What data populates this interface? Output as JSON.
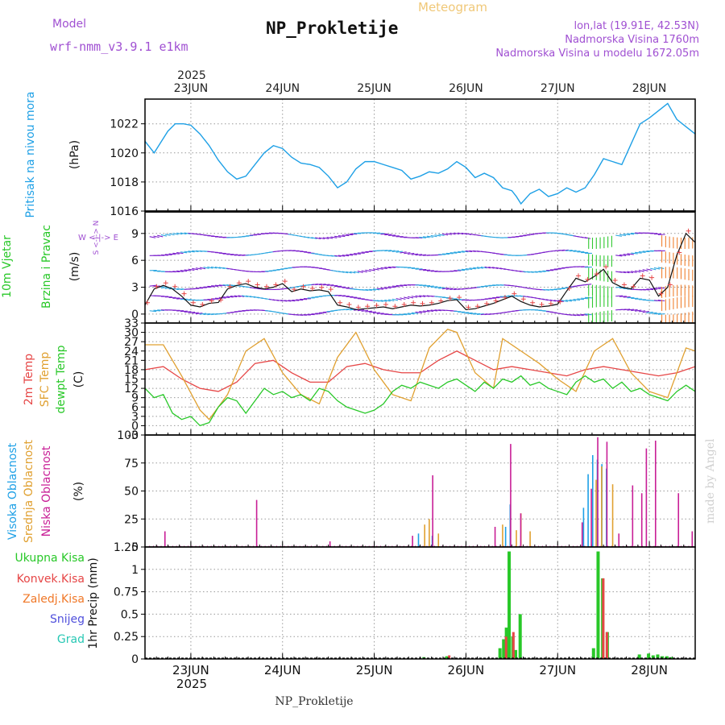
{
  "header": {
    "model_label": "Model",
    "model_name": "wrf-nmm_v3.9.1  e1km",
    "product": "Meteogram",
    "station": "NP_Prokletije",
    "coords": "lon,lat (19.91E, 42.53N)",
    "elevation": "Nadmorska Visina 1760m",
    "model_elevation": "Nadmorska Visina u modelu 1672.05m",
    "year": "2025",
    "footer_station": "NP_Prokletije",
    "credit": "made by Angel"
  },
  "colors": {
    "pressure": "#1ea0e6",
    "temp2m": "#e64646",
    "sfc_temp": "#e0a030",
    "dewpt": "#28c828",
    "high_cloud": "#1ea0e6",
    "mid_cloud": "#e0a030",
    "low_cloud": "#c81e96",
    "total_precip": "#28c828",
    "conv_precip": "#e64646",
    "freezing": "#f07828",
    "snow": "#5050dc",
    "hail": "#28c8b4"
  },
  "x_axis": {
    "days": [
      "23JUN",
      "24JUN",
      "25JUN",
      "26JUN",
      "27JUN",
      "28JUN"
    ],
    "start_day": 22.5,
    "end_day": 28.5
  },
  "panels": {
    "pressure": {
      "title": "Pritisak na nivou mora",
      "unit": "(hPa)",
      "ticks": [
        "1016",
        "1018",
        "1020",
        "1022"
      ],
      "ylim": [
        1016,
        1023.7
      ]
    },
    "wind": {
      "title1": "10m Vjetar",
      "title2": "Brzina i Pravac",
      "unit": "(m/s)",
      "ticks": [
        "0",
        "3",
        "6",
        "9"
      ],
      "ylim": [
        -1,
        11.5
      ],
      "compass": "W <-|-> E",
      "compass_ns": "S <-|-> N"
    },
    "temp": {
      "title1": "2m Temp",
      "title2": "SFC Temp",
      "title3": "dewpt Temp",
      "unit": "(C)",
      "ticks": [
        "-3",
        "0",
        "3",
        "6",
        "9",
        "12",
        "15",
        "18",
        "21",
        "24",
        "27",
        "30",
        "33"
      ],
      "ylim": [
        -3,
        33
      ]
    },
    "cloud": {
      "title1": "Visoka Oblacnost",
      "title2": "Srednja Oblacnost",
      "title3": "Niska Oblacnost",
      "unit": "(%)",
      "ticks": [
        "0",
        "25",
        "50",
        "75",
        "100"
      ],
      "ylim": [
        0,
        100
      ]
    },
    "precip": {
      "legend": [
        "Ukupna Kisa",
        "Konvek.Kisa",
        "Zaledj.Kisa",
        "Snijeg",
        "Grad"
      ],
      "unit": "1hr Precip (mm)",
      "ticks": [
        "0",
        "0.25",
        "0.5",
        "0.75",
        "1",
        "1.25"
      ],
      "ylim": [
        0,
        1.25
      ]
    }
  },
  "chart_data": [
    {
      "type": "line",
      "title": "Pritisak na nivou mora",
      "ylabel": "(hPa)",
      "ylim": [
        1016,
        1023.7
      ],
      "series": [
        {
          "name": "Pritisak na nivou mora",
          "x": [
            22.5,
            22.6,
            22.67,
            22.75,
            22.83,
            22.92,
            23.0,
            23.1,
            23.2,
            23.3,
            23.4,
            23.5,
            23.6,
            23.7,
            23.8,
            23.9,
            24.0,
            24.1,
            24.2,
            24.3,
            24.4,
            24.5,
            24.55,
            24.6,
            24.7,
            24.8,
            24.9,
            25.0,
            25.1,
            25.2,
            25.3,
            25.4,
            25.5,
            25.6,
            25.7,
            25.8,
            25.9,
            26.0,
            26.1,
            26.2,
            26.3,
            26.4,
            26.5,
            26.55,
            26.6,
            26.7,
            26.8,
            26.9,
            27.0,
            27.1,
            27.2,
            27.3,
            27.4,
            27.5,
            27.6,
            27.7,
            27.8,
            27.9,
            28.0,
            28.1,
            28.2,
            28.3,
            28.4,
            28.5
          ],
          "y": [
            1020.8,
            1020.0,
            1020.7,
            1021.5,
            1022.0,
            1022.0,
            1021.9,
            1021.3,
            1020.5,
            1019.5,
            1018.7,
            1018.2,
            1018.4,
            1019.2,
            1020.0,
            1020.5,
            1020.3,
            1019.7,
            1019.3,
            1019.2,
            1019.0,
            1018.4,
            1018.0,
            1017.6,
            1018.0,
            1018.9,
            1019.4,
            1019.4,
            1019.2,
            1019.0,
            1018.8,
            1018.2,
            1018.4,
            1018.7,
            1018.6,
            1018.9,
            1019.4,
            1019.0,
            1018.3,
            1018.6,
            1018.3,
            1017.6,
            1017.4,
            1017.0,
            1016.5,
            1017.2,
            1017.5,
            1017.0,
            1017.2,
            1017.6,
            1017.3,
            1017.6,
            1018.5,
            1019.6,
            1019.4,
            1019.2,
            1020.6,
            1022.0,
            1022.4,
            1022.9,
            1023.4,
            1022.3,
            1021.8,
            1021.3
          ]
        }
      ]
    },
    {
      "type": "line",
      "title": "10m Vjetar Brzina i Pravac",
      "ylabel": "(m/s)",
      "ylim": [
        -1,
        11.5
      ],
      "series": [
        {
          "name": "10m Vjetar",
          "x": [
            22.5,
            22.6,
            22.7,
            22.8,
            22.9,
            23.0,
            23.1,
            23.2,
            23.3,
            23.4,
            23.5,
            23.6,
            23.7,
            23.8,
            23.9,
            24.0,
            24.1,
            24.2,
            24.3,
            24.4,
            24.5,
            24.6,
            24.7,
            24.8,
            24.9,
            25.0,
            25.1,
            25.2,
            25.3,
            25.4,
            25.5,
            25.6,
            25.7,
            25.8,
            25.9,
            26.0,
            26.1,
            26.2,
            26.3,
            26.4,
            26.5,
            26.6,
            26.7,
            26.8,
            26.9,
            27.0,
            27.1,
            27.2,
            27.3,
            27.4,
            27.5,
            27.6,
            27.7,
            27.8,
            27.9,
            28.0,
            28.1,
            28.2,
            28.3,
            28.4,
            28.5
          ],
          "y": [
            1.0,
            2.8,
            3.2,
            2.8,
            2.0,
            1.0,
            0.8,
            1.2,
            1.3,
            2.8,
            3.2,
            3.4,
            3.0,
            2.8,
            3.0,
            3.4,
            2.5,
            2.8,
            2.6,
            2.7,
            2.5,
            1.0,
            0.8,
            0.5,
            0.6,
            0.7,
            0.8,
            0.6,
            0.8,
            1.0,
            0.9,
            1.0,
            1.2,
            1.5,
            1.6,
            0.5,
            0.6,
            0.9,
            1.2,
            1.6,
            2.0,
            1.4,
            1.0,
            0.8,
            0.9,
            1.1,
            2.6,
            4.0,
            3.6,
            4.2,
            5.0,
            3.5,
            3.0,
            2.8,
            4.0,
            3.8,
            2.0,
            3.0,
            6.6,
            9.0,
            8.0
          ]
        }
      ]
    },
    {
      "type": "line",
      "title": "2m Temp / SFC Temp / dewpt Temp",
      "ylabel": "(C)",
      "ylim": [
        -3,
        33
      ],
      "series": [
        {
          "name": "2m Temp",
          "x": [
            22.5,
            22.7,
            22.9,
            23.1,
            23.3,
            23.5,
            23.7,
            23.9,
            24.1,
            24.3,
            24.5,
            24.7,
            24.9,
            25.1,
            25.3,
            25.5,
            25.7,
            25.9,
            26.1,
            26.3,
            26.5,
            26.7,
            26.9,
            27.1,
            27.3,
            27.5,
            27.7,
            27.9,
            28.1,
            28.3,
            28.5
          ],
          "y": [
            18,
            19,
            15,
            12,
            11,
            14,
            20,
            21,
            17,
            14,
            14,
            19,
            20,
            18,
            17,
            17,
            21,
            24,
            21,
            18,
            19,
            18,
            17,
            16,
            18,
            19,
            18,
            17,
            16,
            17,
            19
          ]
        },
        {
          "name": "SFC Temp",
          "x": [
            22.5,
            22.7,
            22.9,
            23.1,
            23.2,
            23.4,
            23.6,
            23.8,
            24.0,
            24.2,
            24.4,
            24.6,
            24.8,
            25.0,
            25.2,
            25.4,
            25.6,
            25.8,
            25.9,
            26.1,
            26.3,
            26.4,
            26.6,
            26.8,
            27.0,
            27.2,
            27.4,
            27.6,
            27.8,
            28.0,
            28.2,
            28.4,
            28.5
          ],
          "y": [
            26,
            26,
            16,
            5,
            2,
            10,
            24,
            28,
            17,
            10,
            7,
            22,
            30,
            18,
            10,
            8,
            25,
            31,
            30,
            17,
            12,
            28,
            24,
            20,
            15,
            11,
            24,
            28,
            17,
            11,
            9,
            25,
            24
          ]
        },
        {
          "name": "dewpt Temp",
          "x": [
            22.5,
            22.6,
            22.7,
            22.8,
            22.9,
            23.0,
            23.1,
            23.2,
            23.3,
            23.4,
            23.5,
            23.6,
            23.7,
            23.8,
            23.9,
            24.0,
            24.1,
            24.2,
            24.3,
            24.4,
            24.5,
            24.6,
            24.7,
            24.8,
            24.9,
            25.0,
            25.1,
            25.2,
            25.3,
            25.4,
            25.5,
            25.6,
            25.7,
            25.8,
            25.9,
            26.0,
            26.1,
            26.2,
            26.3,
            26.4,
            26.5,
            26.6,
            26.7,
            26.8,
            26.9,
            27.0,
            27.1,
            27.2,
            27.3,
            27.4,
            27.5,
            27.6,
            27.7,
            27.8,
            27.9,
            28.0,
            28.1,
            28.2,
            28.3,
            28.4,
            28.5
          ],
          "y": [
            12,
            9,
            10,
            4,
            2,
            3,
            0,
            1,
            6,
            9,
            8,
            4,
            8,
            12,
            10,
            11,
            9,
            10,
            8,
            12,
            11,
            8,
            6,
            5,
            4,
            5,
            7,
            11,
            13,
            12,
            14,
            13,
            12,
            14,
            15,
            13,
            11,
            14,
            12,
            15,
            14,
            16,
            13,
            14,
            12,
            11,
            10,
            14,
            16,
            14,
            15,
            12,
            14,
            11,
            12,
            10,
            9,
            8,
            11,
            13,
            11
          ]
        }
      ]
    },
    {
      "type": "bar",
      "title": "Visoka / Srednja / Niska Oblacnost",
      "ylabel": "(%)",
      "ylim": [
        0,
        100
      ],
      "series": [
        {
          "name": "Visoka Oblacnost",
          "x": [
            25.5,
            25.65,
            26.45,
            26.5,
            27.3,
            27.35,
            27.4,
            27.45,
            27.5,
            27.55
          ],
          "y": [
            12,
            10,
            18,
            38,
            35,
            65,
            82,
            78,
            74,
            70
          ]
        },
        {
          "name": "Srednja Oblacnost",
          "x": [
            25.55,
            25.6,
            25.7,
            26.4,
            26.55,
            26.6,
            26.7,
            27.42,
            27.48,
            27.6
          ],
          "y": [
            20,
            25,
            12,
            20,
            15,
            30,
            14,
            60,
            72,
            56
          ]
        },
        {
          "name": "Niska Oblacnost",
          "x": [
            22.7,
            23.7,
            24.5,
            25.4,
            25.62,
            26.3,
            26.47,
            26.58,
            27.25,
            27.35,
            27.42,
            27.52,
            27.65,
            27.8,
            27.9,
            27.95,
            28.05,
            28.3,
            28.45
          ],
          "y": [
            14,
            42,
            5,
            10,
            64,
            18,
            92,
            30,
            22,
            52,
            98,
            94,
            12,
            55,
            48,
            88,
            95,
            48,
            14
          ]
        }
      ]
    },
    {
      "type": "bar",
      "title": "1hr Precip",
      "ylabel": "1hr Precip (mm)",
      "ylim": [
        0,
        1.25
      ],
      "series": [
        {
          "name": "Ukupna Kisa",
          "x": [
            25.55,
            25.8,
            26.38,
            26.42,
            26.45,
            26.48,
            26.52,
            26.55,
            26.6,
            27.4,
            27.45,
            27.5,
            27.55,
            27.9,
            28.0,
            28.05,
            28.1,
            28.15,
            28.2,
            28.25
          ],
          "y": [
            0.02,
            0.03,
            0.12,
            0.22,
            0.35,
            1.2,
            0.25,
            0.1,
            0.5,
            0.12,
            1.2,
            0.9,
            0.3,
            0.05,
            0.06,
            0.04,
            0.05,
            0.03,
            0.03,
            0.02
          ]
        },
        {
          "name": "Konvek.Kisa",
          "x": [
            25.8,
            26.42,
            26.5,
            27.48,
            27.52
          ],
          "y": [
            0.04,
            0.25,
            0.3,
            0.9,
            0.3
          ]
        }
      ]
    }
  ]
}
